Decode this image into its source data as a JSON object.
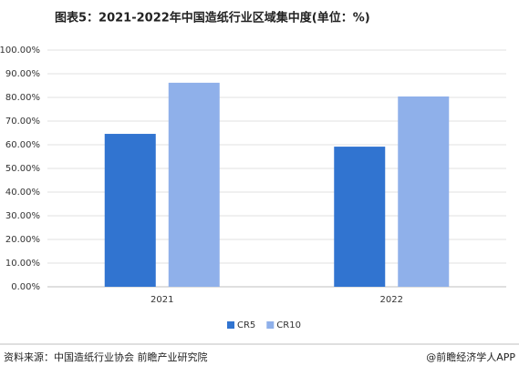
{
  "chart_data": {
    "type": "bar",
    "title": "图表5：2021-2022年中国造纸行业区域集中度(单位：%)",
    "categories": [
      "2021",
      "2022"
    ],
    "series": [
      {
        "name": "CR5",
        "color": "#3174d0",
        "values": [
          64.6,
          59.2
        ]
      },
      {
        "name": "CR10",
        "color": "#8fb0ea",
        "values": [
          86.2,
          80.4
        ]
      }
    ],
    "ylim": [
      0,
      100
    ],
    "yticks": [
      {
        "value": 0,
        "label": "0.00%"
      },
      {
        "value": 10,
        "label": "10.00%"
      },
      {
        "value": 20,
        "label": "20.00%"
      },
      {
        "value": 30,
        "label": "30.00%"
      },
      {
        "value": 40,
        "label": "40.00%"
      },
      {
        "value": 50,
        "label": "50.00%"
      },
      {
        "value": 60,
        "label": "60.00%"
      },
      {
        "value": 70,
        "label": "70.00%"
      },
      {
        "value": 80,
        "label": "80.00%"
      },
      {
        "value": 90,
        "label": "90.00%"
      },
      {
        "value": 100,
        "label": "100.00%"
      }
    ],
    "grid": true,
    "legend": "bottom",
    "source": "资料来源：中国造纸行业协会 前瞻产业研究院",
    "credit": "@前瞻经济学人APP"
  }
}
